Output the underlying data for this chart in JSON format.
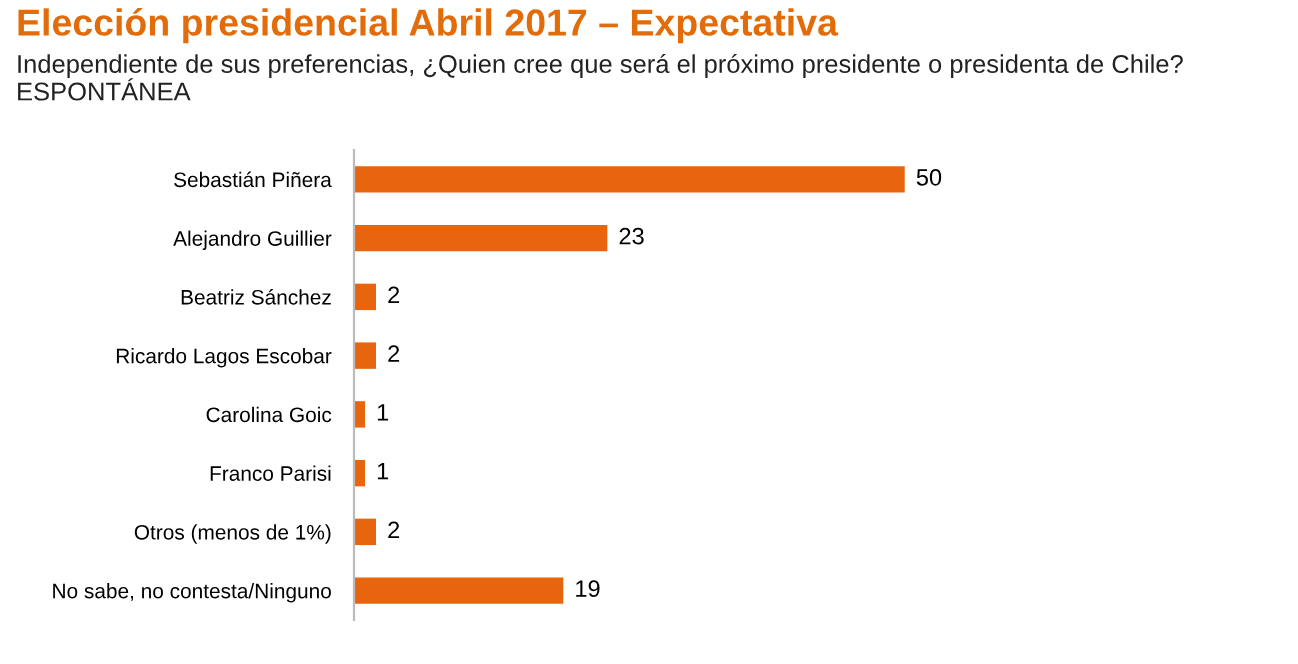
{
  "chart_data": {
    "type": "bar",
    "orientation": "horizontal",
    "title": "Elección presidencial Abril 2017 – Expectativa",
    "subtitle": "Independiente de sus preferencias, ¿Quien cree que será el próximo presidente o presidenta de Chile? ESPONTÁNEA",
    "categories": [
      "Sebastián Piñera",
      "Alejandro Guillier",
      "Beatriz Sánchez",
      "Ricardo Lagos Escobar",
      "Carolina Goic",
      "Franco Parisi",
      "Otros (menos de 1%)",
      "No sabe, no contesta/Ninguno"
    ],
    "values": [
      50,
      23,
      2,
      2,
      1,
      1,
      2,
      19
    ],
    "color": "#e8650f",
    "data_labels": true
  }
}
